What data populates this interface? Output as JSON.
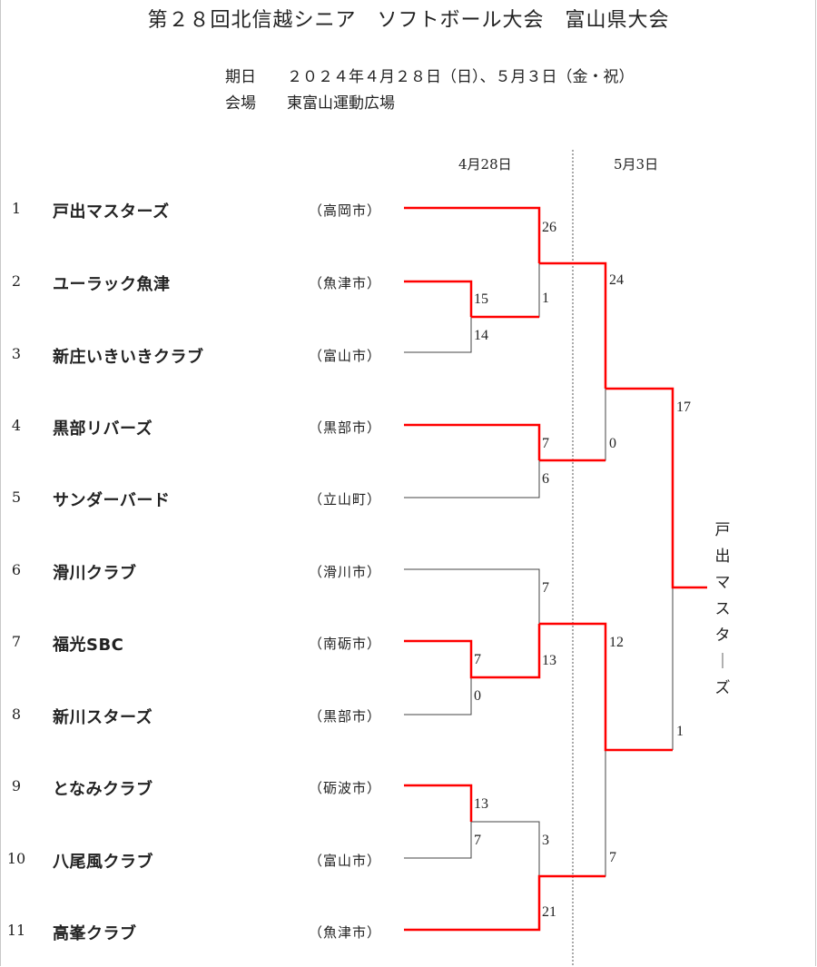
{
  "title": "第２８回北信越シニア　ソフトボール大会　富山県大会",
  "info": {
    "date_label": "期日",
    "date_value": "２０２４年４月２８日（日）、５月３日（金・祝）",
    "venue_label": "会場",
    "venue_value": "東富山運動広場"
  },
  "round_dates": [
    "4月28日",
    "5月3日"
  ],
  "teams": [
    {
      "seed": "1",
      "name": "戸出マスターズ",
      "city": "（高岡市）"
    },
    {
      "seed": "2",
      "name": "ユーラック魚津",
      "city": "（魚津市）"
    },
    {
      "seed": "3",
      "name": "新庄いきいきクラブ",
      "city": "（富山市）"
    },
    {
      "seed": "4",
      "name": "黒部リバーズ",
      "city": "（黒部市）"
    },
    {
      "seed": "5",
      "name": "サンダーバード",
      "city": "（立山町）"
    },
    {
      "seed": "6",
      "name": "滑川クラブ",
      "city": "（滑川市）"
    },
    {
      "seed": "7",
      "name": "福光SBC",
      "city": "（南砺市）"
    },
    {
      "seed": "8",
      "name": "新川スターズ",
      "city": "（黒部市）"
    },
    {
      "seed": "9",
      "name": "となみクラブ",
      "city": "（砺波市）"
    },
    {
      "seed": "10",
      "name": "八尾風クラブ",
      "city": "（富山市）"
    },
    {
      "seed": "11",
      "name": "高峯クラブ",
      "city": "（魚津市）"
    }
  ],
  "scores": {
    "m_2v3_top": "15",
    "m_2v3_bot": "14",
    "m_1vW23_top": "26",
    "m_1vW23_bot": "1",
    "m_4v5_top": "7",
    "m_4v5_bot": "6",
    "m_7v8_top": "7",
    "m_7v8_bot": "0",
    "m_6vW78_top": "7",
    "m_6vW78_bot": "13",
    "m_9v10_top": "13",
    "m_9v10_bot": "7",
    "m_W910v11_top": "3",
    "m_W910v11_bot": "21",
    "sf1_top": "24",
    "sf1_bot": "0",
    "sf2_top": "12",
    "sf2_bot": "7",
    "final_top": "17",
    "final_bot": "1"
  },
  "champion": "戸出マスターズ",
  "colors": {
    "winner_line": "#ff0000",
    "loser_line": "#444444",
    "divider": "#555555"
  }
}
